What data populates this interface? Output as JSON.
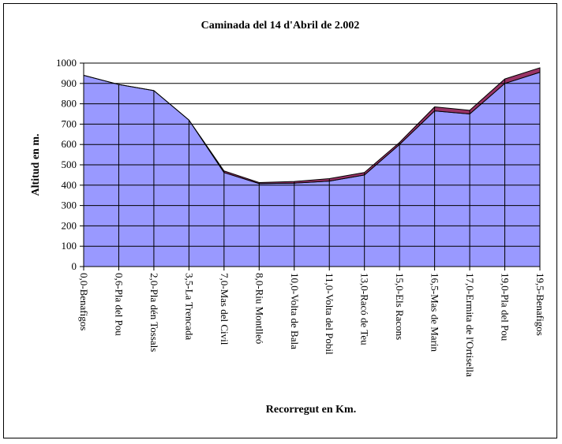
{
  "chart_data": {
    "type": "area",
    "title": "Caminada del 14 d'Abril de 2.002",
    "xlabel": "Recorregut en Km.",
    "ylabel": "Altitud en m.",
    "ylim": [
      0,
      1000
    ],
    "ytick_step": 100,
    "grid": true,
    "legend": "none",
    "categories": [
      "0,0-Benafigos",
      "0,6-Pla del Pou",
      "2,0-Pla dén Tossals",
      "3,5-La Trencada",
      "7,0-Mas del Civil",
      "8,0-Riu Montlleó",
      "10,0-Volta de Bala",
      "11,0-Volta del Pobil",
      "13,0-Racó de Teu",
      "15,0-Els Racons",
      "16,5-Mas de Marin",
      "17,0-Ermita de l'Ortisella",
      "19,0-Pla del Pou",
      "19,5-Benafigos"
    ],
    "series": [
      {
        "values": [
          940,
          895,
          865,
          720,
          462,
          408,
          410,
          420,
          450,
          600,
          765,
          750,
          900,
          955
        ],
        "color": "#9999ff"
      },
      {
        "values": [
          0,
          0,
          0,
          0,
          8,
          5,
          8,
          12,
          12,
          10,
          20,
          18,
          22,
          22
        ],
        "color": "#993366"
      }
    ]
  }
}
